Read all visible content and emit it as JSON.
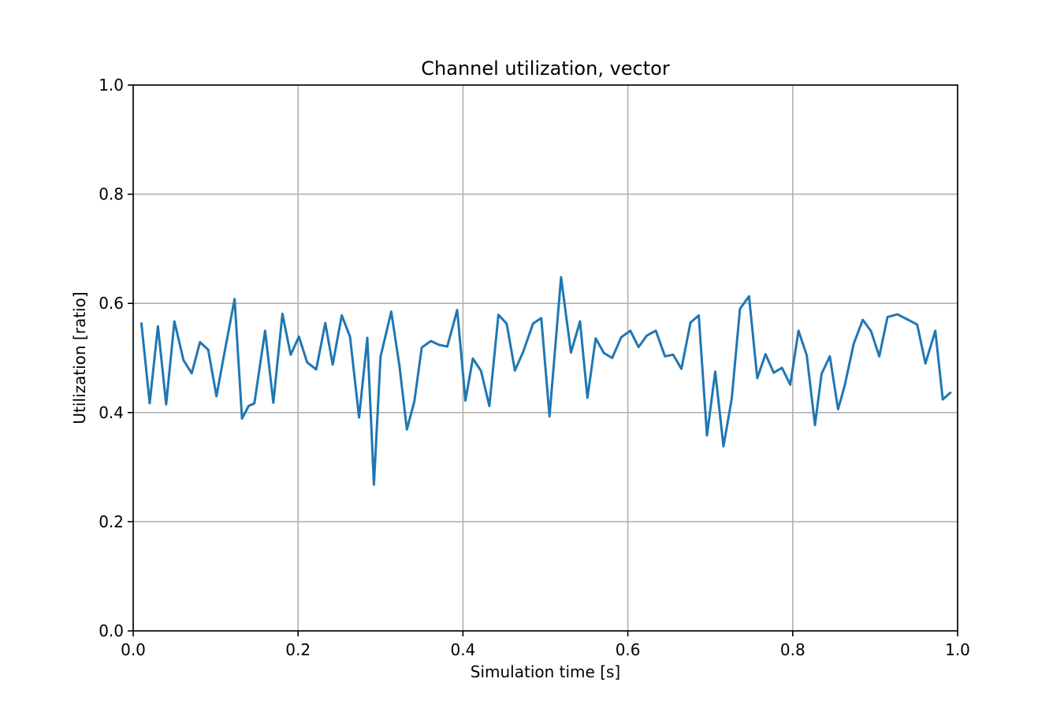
{
  "chart_data": {
    "type": "line",
    "title": "Channel utilization, vector",
    "xlabel": "Simulation time [s]",
    "ylabel": "Utilization [ratio]",
    "xlim": [
      0.0,
      1.0
    ],
    "ylim": [
      0.0,
      1.0
    ],
    "xticks": [
      "0.0",
      "0.2",
      "0.4",
      "0.6",
      "0.8",
      "1.0"
    ],
    "yticks": [
      "0.0",
      "0.2",
      "0.4",
      "0.6",
      "0.8",
      "1.0"
    ],
    "grid": true,
    "line_color": "#1f77b4",
    "series": [
      {
        "x": [
          0.01,
          0.02,
          0.03,
          0.04,
          0.05,
          0.061,
          0.071,
          0.081,
          0.091,
          0.101,
          0.111,
          0.123,
          0.132,
          0.14,
          0.147,
          0.16,
          0.17,
          0.181,
          0.191,
          0.201,
          0.211,
          0.222,
          0.233,
          0.242,
          0.253,
          0.263,
          0.274,
          0.284,
          0.292,
          0.3,
          0.313,
          0.323,
          0.332,
          0.341,
          0.35,
          0.361,
          0.371,
          0.381,
          0.393,
          0.403,
          0.412,
          0.422,
          0.432,
          0.443,
          0.453,
          0.463,
          0.473,
          0.485,
          0.495,
          0.505,
          0.519,
          0.531,
          0.542,
          0.551,
          0.561,
          0.571,
          0.581,
          0.592,
          0.603,
          0.613,
          0.623,
          0.634,
          0.645,
          0.655,
          0.665,
          0.676,
          0.686,
          0.696,
          0.706,
          0.716,
          0.726,
          0.736,
          0.747,
          0.757,
          0.767,
          0.777,
          0.787,
          0.797,
          0.807,
          0.817,
          0.827,
          0.835,
          0.845,
          0.855,
          0.863,
          0.874,
          0.885,
          0.895,
          0.905,
          0.915,
          0.927,
          0.94,
          0.951,
          0.961,
          0.973,
          0.982,
          0.991
        ],
        "y": [
          0.563,
          0.417,
          0.558,
          0.415,
          0.567,
          0.496,
          0.472,
          0.529,
          0.515,
          0.43,
          0.512,
          0.608,
          0.389,
          0.412,
          0.417,
          0.55,
          0.418,
          0.581,
          0.506,
          0.539,
          0.492,
          0.479,
          0.564,
          0.488,
          0.578,
          0.539,
          0.391,
          0.537,
          0.268,
          0.502,
          0.585,
          0.485,
          0.369,
          0.42,
          0.519,
          0.531,
          0.524,
          0.521,
          0.588,
          0.422,
          0.499,
          0.476,
          0.412,
          0.579,
          0.563,
          0.477,
          0.511,
          0.563,
          0.573,
          0.393,
          0.648,
          0.51,
          0.567,
          0.427,
          0.536,
          0.509,
          0.5,
          0.538,
          0.55,
          0.52,
          0.541,
          0.55,
          0.503,
          0.506,
          0.48,
          0.565,
          0.578,
          0.358,
          0.475,
          0.338,
          0.425,
          0.59,
          0.613,
          0.463,
          0.507,
          0.473,
          0.482,
          0.451,
          0.55,
          0.505,
          0.377,
          0.471,
          0.503,
          0.406,
          0.449,
          0.526,
          0.57,
          0.549,
          0.503,
          0.575,
          0.58,
          0.57,
          0.561,
          0.49,
          0.55,
          0.424,
          0.436
        ]
      }
    ]
  }
}
